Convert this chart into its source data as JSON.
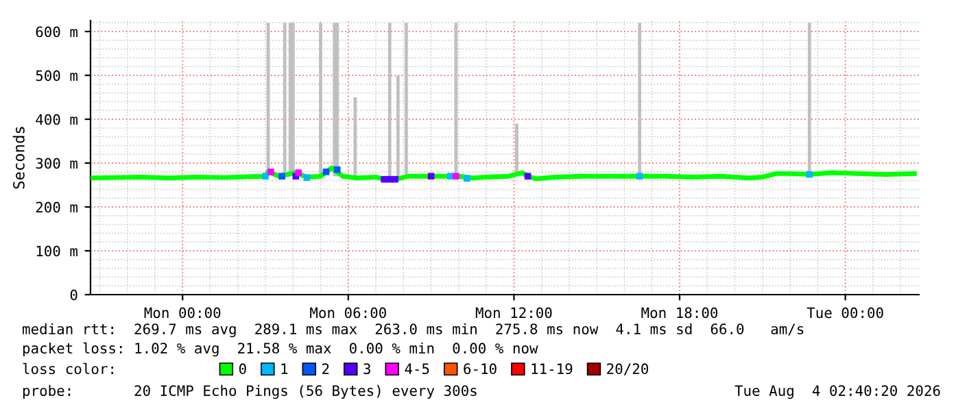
{
  "chart_data": {
    "type": "line",
    "ylabel": "Seconds",
    "legend_title": "loss color:",
    "legend": "bottom",
    "grid": true,
    "xlim": [
      "2026-08-02T20:40",
      "2026-08-04T02:40"
    ],
    "xticks": [
      {
        "value": "2026-08-03T00:00",
        "label": "Mon 00:00"
      },
      {
        "value": "2026-08-03T06:00",
        "label": "Mon 06:00"
      },
      {
        "value": "2026-08-03T12:00",
        "label": "Mon 12:00"
      },
      {
        "value": "2026-08-03T18:00",
        "label": "Mon 18:00"
      },
      {
        "value": "2026-08-04T00:00",
        "label": "Tue 00:00"
      }
    ],
    "ylim": [
      0,
      625
    ],
    "yticks": [
      0,
      {
        "value": 100,
        "label": "100 m"
      },
      {
        "value": 200,
        "label": "200 m"
      },
      {
        "value": 300,
        "label": "300 m"
      },
      {
        "value": 400,
        "label": "400 m"
      },
      {
        "value": 500,
        "label": "500 m"
      },
      {
        "value": 600,
        "label": "600 m"
      }
    ],
    "series": [
      {
        "type": "bar",
        "color": "#c0c0c0",
        "x": [
          "2026-08-03T03:06",
          "2026-08-03T03:42",
          "2026-08-03T03:54",
          "2026-08-03T04:00",
          "2026-08-03T05:00",
          "2026-08-03T05:30",
          "2026-08-03T05:36",
          "2026-08-03T06:15",
          "2026-08-03T07:30",
          "2026-08-03T07:48",
          "2026-08-03T08:06",
          "2026-08-03T09:54",
          "2026-08-03T12:06",
          "2026-08-03T16:33",
          "2026-08-03T22:42"
        ],
        "base": [
          270,
          270,
          270,
          270,
          270,
          270,
          270,
          270,
          270,
          270,
          270,
          270,
          270,
          270,
          270
        ],
        "values": [
          350,
          350,
          350,
          350,
          350,
          350,
          350,
          180,
          350,
          230,
          350,
          350,
          120,
          350,
          350
        ]
      },
      {
        "name": "0",
        "color": "#00ff00",
        "x": [
          "2026-08-02T20:42",
          "2026-08-02T21:30",
          "2026-08-02T22:30",
          "2026-08-02T23:30",
          "2026-08-03T00:30",
          "2026-08-03T01:30",
          "2026-08-03T02:30",
          "2026-08-03T03:00",
          "2026-08-03T03:06",
          "2026-08-03T03:30",
          "2026-08-03T04:06",
          "2026-08-03T04:30",
          "2026-08-03T05:00",
          "2026-08-03T05:24",
          "2026-08-03T05:48",
          "2026-08-03T06:18",
          "2026-08-03T07:00",
          "2026-08-03T07:18",
          "2026-08-03T07:42",
          "2026-08-03T08:12",
          "2026-08-03T09:00",
          "2026-08-03T10:00",
          "2026-08-03T10:30",
          "2026-08-03T11:00",
          "2026-08-03T11:48",
          "2026-08-03T12:18",
          "2026-08-03T12:30",
          "2026-08-03T12:48",
          "2026-08-03T13:30",
          "2026-08-03T14:30",
          "2026-08-03T15:30",
          "2026-08-03T16:30",
          "2026-08-03T17:30",
          "2026-08-03T18:30",
          "2026-08-03T19:30",
          "2026-08-03T20:30",
          "2026-08-03T21:00",
          "2026-08-03T21:30",
          "2026-08-03T22:00",
          "2026-08-03T22:42",
          "2026-08-03T23:30",
          "2026-08-04T00:30",
          "2026-08-04T01:30",
          "2026-08-04T02:30"
        ],
        "values": [
          266,
          267,
          268,
          266,
          268,
          267,
          269,
          270,
          280,
          270,
          278,
          268,
          270,
          289,
          270,
          266,
          268,
          263,
          263,
          270,
          270,
          270,
          266,
          268,
          270,
          278,
          270,
          264,
          268,
          270,
          270,
          270,
          270,
          268,
          270,
          266,
          268,
          276,
          276,
          274,
          278,
          276,
          274,
          276
        ]
      },
      {
        "name": "1",
        "type": "scatter",
        "marker": "square",
        "color": "#00b8ff",
        "x": [
          "2026-08-03T03:00",
          "2026-08-03T04:30",
          "2026-08-03T09:42",
          "2026-08-03T10:18",
          "2026-08-03T16:33",
          "2026-08-03T22:42"
        ],
        "values": [
          270,
          267,
          270,
          265,
          270,
          274
        ]
      },
      {
        "name": "2",
        "type": "scatter",
        "marker": "square",
        "color": "#0059ff",
        "x": [
          "2026-08-03T03:36",
          "2026-08-03T05:12",
          "2026-08-03T05:36"
        ],
        "values": [
          270,
          280,
          285
        ]
      },
      {
        "name": "3",
        "type": "scatter",
        "marker": "square",
        "color": "#5500ff",
        "x": [
          "2026-08-03T04:06",
          "2026-08-03T07:18",
          "2026-08-03T07:30",
          "2026-08-03T07:42",
          "2026-08-03T09:00",
          "2026-08-03T12:30"
        ],
        "values": [
          270,
          263,
          263,
          263,
          270,
          270
        ]
      },
      {
        "name": "4-5",
        "type": "scatter",
        "marker": "square",
        "color": "#ff00ff",
        "x": [
          "2026-08-03T03:12",
          "2026-08-03T04:12",
          "2026-08-03T09:54"
        ],
        "values": [
          280,
          278,
          270
        ]
      },
      {
        "name": "6-10",
        "type": "scatter",
        "color": "#ff5500"
      },
      {
        "name": "11-19",
        "type": "scatter",
        "color": "#ff0000"
      },
      {
        "name": "20/20",
        "type": "scatter",
        "color": "#a10000"
      }
    ],
    "annotations": [
      "median rtt:  269.7 ms avg  289.1 ms max  263.0 ms min  275.8 ms now  4.1 ms sd  66.0   am/s",
      "packet loss: 1.02 % avg  21.58 % max  0.00 % min  0.00 % now",
      "probe:       20 ICMP Echo Pings (56 Bytes) every 300s",
      "Tue Aug  4 02:40:20 2026"
    ]
  }
}
